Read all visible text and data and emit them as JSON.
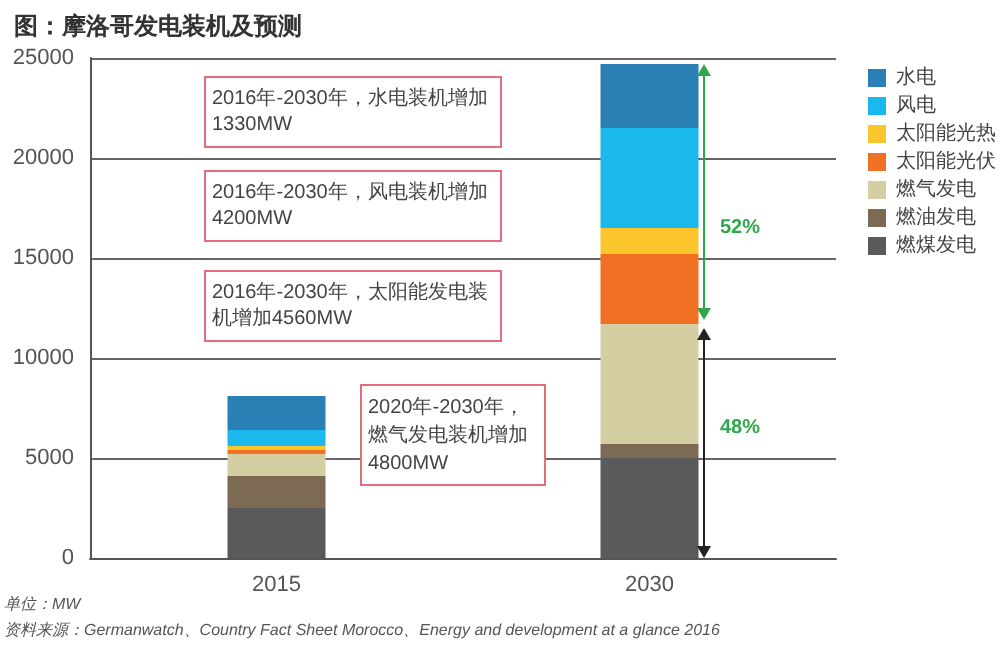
{
  "chart_data": {
    "type": "bar",
    "stacked": true,
    "title": "图：摩洛哥发电装机及预测",
    "categories": [
      "2015",
      "2030"
    ],
    "series": [
      {
        "name": "燃煤发电",
        "color": "#5a5a5c",
        "values": [
          2500,
          5000
        ]
      },
      {
        "name": "燃油发电",
        "color": "#7d6a54",
        "values": [
          1600,
          700
        ]
      },
      {
        "name": "燃气发电",
        "color": "#d3cfa3",
        "values": [
          1100,
          6000
        ]
      },
      {
        "name": "太阳能光伏",
        "color": "#f07024",
        "values": [
          200,
          3500
        ]
      },
      {
        "name": "太阳能光热",
        "color": "#fbc52e",
        "values": [
          200,
          1300
        ]
      },
      {
        "name": "风电",
        "color": "#1ab8ec",
        "values": [
          800,
          5000
        ]
      },
      {
        "name": "水电",
        "color": "#2a7fb5",
        "values": [
          1700,
          3200
        ]
      }
    ],
    "ylim": [
      0,
      25000
    ],
    "yticks": [
      0,
      5000,
      10000,
      15000,
      20000,
      25000
    ],
    "grid": "y",
    "legend": "right",
    "annotations": [
      "2016年-2030年，水电装机增加1330MW",
      "2016年-2030年，风电装机增加4200MW",
      "2016年-2030年，太阳能发电装机增加4560MW",
      "2020年-2030年，燃气发电装机增加4800MW",
      "52%",
      "48%",
      "单位：MW",
      "资料来源：Germanwatch、Country Fact Sheet Morocco、Energy and development at a glance 2016"
    ]
  }
}
